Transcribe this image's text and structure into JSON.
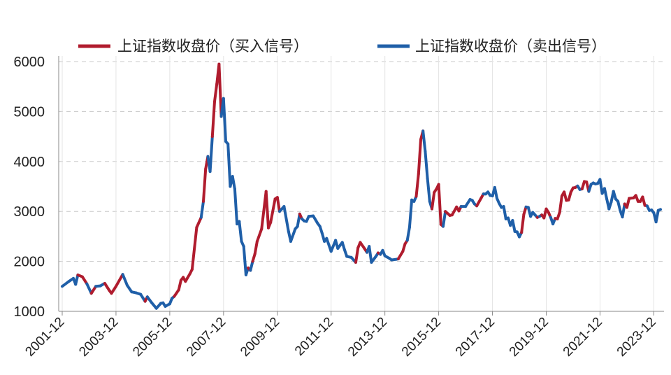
{
  "chart_data": {
    "type": "line",
    "title": "",
    "xlabel": "",
    "ylabel": "",
    "ylim": [
      1000,
      6000
    ],
    "yticks": [
      "1000",
      "2000",
      "3000",
      "4000",
      "5000",
      "6000"
    ],
    "xticks": [
      "2001-12",
      "2003-12",
      "2005-12",
      "2007-12",
      "2009-12",
      "2011-12",
      "2013-12",
      "2015-12",
      "2017-12",
      "2019-12",
      "2021-12",
      "2023-12"
    ],
    "grid": "horizontal dashed",
    "legend_position": "top",
    "series": [
      {
        "name": "上证指数收盘价（买入信号）",
        "color": "#b01c2e"
      },
      {
        "name": "上证指数收盘价（卖出信号）",
        "color": "#1f5fa8"
      }
    ],
    "points": [
      [
        "2001-12",
        1500,
        1
      ],
      [
        "2002-03",
        1600,
        1
      ],
      [
        "2002-05",
        1660,
        1
      ],
      [
        "2002-06",
        1540,
        1
      ],
      [
        "2002-07",
        1730,
        0
      ],
      [
        "2002-09",
        1690,
        0
      ],
      [
        "2002-11",
        1550,
        1
      ],
      [
        "2003-01",
        1360,
        0
      ],
      [
        "2003-03",
        1500,
        1
      ],
      [
        "2003-05",
        1510,
        1
      ],
      [
        "2003-07",
        1560,
        0
      ],
      [
        "2003-09",
        1420,
        0
      ],
      [
        "2003-10",
        1360,
        0
      ],
      [
        "2003-12",
        1500,
        0
      ],
      [
        "2004-03",
        1740,
        1
      ],
      [
        "2004-05",
        1520,
        1
      ],
      [
        "2004-07",
        1390,
        1
      ],
      [
        "2004-09",
        1370,
        1
      ],
      [
        "2004-11",
        1340,
        1
      ],
      [
        "2005-01",
        1200,
        0
      ],
      [
        "2005-02",
        1290,
        1
      ],
      [
        "2005-04",
        1170,
        1
      ],
      [
        "2005-06",
        1060,
        1
      ],
      [
        "2005-08",
        1160,
        1
      ],
      [
        "2005-09",
        1170,
        1
      ],
      [
        "2005-10",
        1100,
        1
      ],
      [
        "2005-12",
        1150,
        1
      ],
      [
        "2006-01",
        1260,
        1
      ],
      [
        "2006-02",
        1300,
        0
      ],
      [
        "2006-04",
        1430,
        0
      ],
      [
        "2006-05",
        1620,
        0
      ],
      [
        "2006-06",
        1680,
        0
      ],
      [
        "2006-07",
        1600,
        0
      ],
      [
        "2006-09",
        1750,
        0
      ],
      [
        "2006-10",
        1840,
        0
      ],
      [
        "2006-12",
        2680,
        0
      ],
      [
        "2007-02",
        2880,
        1
      ],
      [
        "2007-03",
        3200,
        0
      ],
      [
        "2007-04",
        3850,
        0
      ],
      [
        "2007-05",
        4100,
        1
      ],
      [
        "2007-06",
        3800,
        1
      ],
      [
        "2007-07",
        4500,
        0
      ],
      [
        "2007-08",
        5200,
        0
      ],
      [
        "2007-09",
        5550,
        0
      ],
      [
        "2007-10",
        5950,
        0
      ],
      [
        "2007-11",
        4900,
        1
      ],
      [
        "2007-12",
        5260,
        1
      ],
      [
        "2008-01",
        4400,
        1
      ],
      [
        "2008-02",
        4350,
        1
      ],
      [
        "2008-03",
        3500,
        1
      ],
      [
        "2008-04",
        3700,
        1
      ],
      [
        "2008-05",
        3450,
        1
      ],
      [
        "2008-06",
        2750,
        1
      ],
      [
        "2008-07",
        2800,
        1
      ],
      [
        "2008-08",
        2400,
        1
      ],
      [
        "2008-09",
        2300,
        1
      ],
      [
        "2008-10",
        1730,
        1
      ],
      [
        "2008-11",
        1870,
        0
      ],
      [
        "2008-12",
        1820,
        1
      ],
      [
        "2009-01",
        2000,
        0
      ],
      [
        "2009-02",
        2150,
        0
      ],
      [
        "2009-03",
        2400,
        0
      ],
      [
        "2009-05",
        2650,
        0
      ],
      [
        "2009-07",
        3400,
        0
      ],
      [
        "2009-08",
        2670,
        0
      ],
      [
        "2009-09",
        2780,
        0
      ],
      [
        "2009-11",
        3250,
        0
      ],
      [
        "2009-12",
        3280,
        0
      ],
      [
        "2010-01",
        3000,
        1
      ],
      [
        "2010-03",
        3100,
        1
      ],
      [
        "2010-05",
        2600,
        1
      ],
      [
        "2010-06",
        2400,
        1
      ],
      [
        "2010-08",
        2650,
        1
      ],
      [
        "2010-09",
        2700,
        1
      ],
      [
        "2010-10",
        2950,
        0
      ],
      [
        "2010-11",
        2850,
        1
      ],
      [
        "2010-12",
        2810,
        1
      ],
      [
        "2011-01",
        2800,
        1
      ],
      [
        "2011-02",
        2900,
        1
      ],
      [
        "2011-04",
        2910,
        1
      ],
      [
        "2011-06",
        2760,
        1
      ],
      [
        "2011-07",
        2700,
        1
      ],
      [
        "2011-08",
        2560,
        1
      ],
      [
        "2011-09",
        2400,
        1
      ],
      [
        "2011-10",
        2460,
        1
      ],
      [
        "2011-11",
        2330,
        1
      ],
      [
        "2011-12",
        2200,
        1
      ],
      [
        "2012-02",
        2420,
        1
      ],
      [
        "2012-03",
        2260,
        1
      ],
      [
        "2012-05",
        2380,
        1
      ],
      [
        "2012-06",
        2230,
        1
      ],
      [
        "2012-07",
        2100,
        1
      ],
      [
        "2012-09",
        2080,
        1
      ],
      [
        "2012-11",
        1980,
        0
      ],
      [
        "2012-12",
        2270,
        0
      ],
      [
        "2013-01",
        2380,
        0
      ],
      [
        "2013-03",
        2250,
        0
      ],
      [
        "2013-04",
        2180,
        1
      ],
      [
        "2013-05",
        2300,
        1
      ],
      [
        "2013-06",
        1980,
        1
      ],
      [
        "2013-08",
        2100,
        1
      ],
      [
        "2013-09",
        2170,
        0
      ],
      [
        "2013-10",
        2140,
        1
      ],
      [
        "2013-11",
        2220,
        1
      ],
      [
        "2013-12",
        2110,
        1
      ],
      [
        "2014-02",
        2060,
        1
      ],
      [
        "2014-03",
        2030,
        1
      ],
      [
        "2014-05",
        2040,
        1
      ],
      [
        "2014-06",
        2050,
        0
      ],
      [
        "2014-08",
        2200,
        0
      ],
      [
        "2014-09",
        2350,
        0
      ],
      [
        "2014-10",
        2420,
        1
      ],
      [
        "2014-11",
        2680,
        1
      ],
      [
        "2014-12",
        3230,
        1
      ],
      [
        "2015-01",
        3200,
        1
      ],
      [
        "2015-02",
        3300,
        0
      ],
      [
        "2015-03",
        3750,
        0
      ],
      [
        "2015-04",
        4440,
        0
      ],
      [
        "2015-05",
        4610,
        1
      ],
      [
        "2015-06",
        4200,
        1
      ],
      [
        "2015-07",
        3660,
        1
      ],
      [
        "2015-08",
        3200,
        1
      ],
      [
        "2015-09",
        3050,
        0
      ],
      [
        "2015-10",
        3380,
        0
      ],
      [
        "2015-11",
        3450,
        0
      ],
      [
        "2015-12",
        3540,
        0
      ],
      [
        "2016-01",
        2740,
        0
      ],
      [
        "2016-02",
        2700,
        1
      ],
      [
        "2016-03",
        3000,
        0
      ],
      [
        "2016-05",
        2920,
        0
      ],
      [
        "2016-06",
        2930,
        0
      ],
      [
        "2016-08",
        3090,
        0
      ],
      [
        "2016-09",
        3010,
        0
      ],
      [
        "2016-10",
        3100,
        1
      ],
      [
        "2016-12",
        3100,
        1
      ],
      [
        "2017-02",
        3240,
        1
      ],
      [
        "2017-03",
        3220,
        1
      ],
      [
        "2017-04",
        3150,
        1
      ],
      [
        "2017-05",
        3110,
        0
      ],
      [
        "2017-07",
        3270,
        0
      ],
      [
        "2017-08",
        3350,
        1
      ],
      [
        "2017-09",
        3350,
        1
      ],
      [
        "2017-10",
        3390,
        1
      ],
      [
        "2017-11",
        3320,
        1
      ],
      [
        "2017-12",
        3310,
        1
      ],
      [
        "2018-01",
        3480,
        1
      ],
      [
        "2018-02",
        3260,
        1
      ],
      [
        "2018-03",
        3160,
        1
      ],
      [
        "2018-04",
        3080,
        1
      ],
      [
        "2018-05",
        3100,
        1
      ],
      [
        "2018-06",
        2850,
        1
      ],
      [
        "2018-07",
        2870,
        1
      ],
      [
        "2018-08",
        2720,
        1
      ],
      [
        "2018-09",
        2820,
        1
      ],
      [
        "2018-10",
        2600,
        1
      ],
      [
        "2018-11",
        2590,
        1
      ],
      [
        "2018-12",
        2490,
        1
      ],
      [
        "2019-01",
        2580,
        0
      ],
      [
        "2019-02",
        2940,
        0
      ],
      [
        "2019-03",
        3090,
        1
      ],
      [
        "2019-04",
        3080,
        1
      ],
      [
        "2019-05",
        2900,
        1
      ],
      [
        "2019-06",
        2980,
        1
      ],
      [
        "2019-07",
        2930,
        1
      ],
      [
        "2019-08",
        2880,
        0
      ],
      [
        "2019-09",
        2900,
        1
      ],
      [
        "2019-10",
        2930,
        0
      ],
      [
        "2019-11",
        2870,
        0
      ],
      [
        "2019-12",
        3050,
        0
      ],
      [
        "2020-01",
        2980,
        0
      ],
      [
        "2020-02",
        2880,
        1
      ],
      [
        "2020-03",
        2750,
        1
      ],
      [
        "2020-04",
        2860,
        0
      ],
      [
        "2020-05",
        2850,
        0
      ],
      [
        "2020-06",
        2980,
        0
      ],
      [
        "2020-07",
        3310,
        0
      ],
      [
        "2020-08",
        3390,
        0
      ],
      [
        "2020-09",
        3220,
        0
      ],
      [
        "2020-10",
        3230,
        0
      ],
      [
        "2020-11",
        3390,
        0
      ],
      [
        "2020-12",
        3470,
        0
      ],
      [
        "2021-01",
        3480,
        0
      ],
      [
        "2021-02",
        3510,
        1
      ],
      [
        "2021-03",
        3440,
        1
      ],
      [
        "2021-04",
        3450,
        0
      ],
      [
        "2021-05",
        3600,
        0
      ],
      [
        "2021-06",
        3590,
        0
      ],
      [
        "2021-07",
        3400,
        1
      ],
      [
        "2021-08",
        3540,
        1
      ],
      [
        "2021-09",
        3570,
        1
      ],
      [
        "2021-10",
        3550,
        1
      ],
      [
        "2021-11",
        3560,
        1
      ],
      [
        "2021-12",
        3640,
        1
      ],
      [
        "2022-01",
        3360,
        1
      ],
      [
        "2022-02",
        3460,
        1
      ],
      [
        "2022-03",
        3250,
        1
      ],
      [
        "2022-04",
        3050,
        1
      ],
      [
        "2022-05",
        3190,
        1
      ],
      [
        "2022-06",
        3400,
        1
      ],
      [
        "2022-07",
        3250,
        1
      ],
      [
        "2022-08",
        3200,
        1
      ],
      [
        "2022-09",
        3020,
        1
      ],
      [
        "2022-10",
        2890,
        1
      ],
      [
        "2022-11",
        3150,
        0
      ],
      [
        "2022-12",
        3080,
        0
      ],
      [
        "2023-01",
        3260,
        0
      ],
      [
        "2023-03",
        3270,
        0
      ],
      [
        "2023-04",
        3320,
        0
      ],
      [
        "2023-05",
        3200,
        0
      ],
      [
        "2023-06",
        3200,
        0
      ],
      [
        "2023-07",
        3290,
        0
      ],
      [
        "2023-08",
        3120,
        0
      ],
      [
        "2023-09",
        3110,
        1
      ],
      [
        "2023-10",
        3020,
        1
      ],
      [
        "2023-11",
        3030,
        1
      ],
      [
        "2023-12",
        2970,
        1
      ],
      [
        "2024-01",
        2790,
        1
      ],
      [
        "2024-02",
        3020,
        1
      ],
      [
        "2024-03",
        3040,
        1
      ]
    ]
  }
}
